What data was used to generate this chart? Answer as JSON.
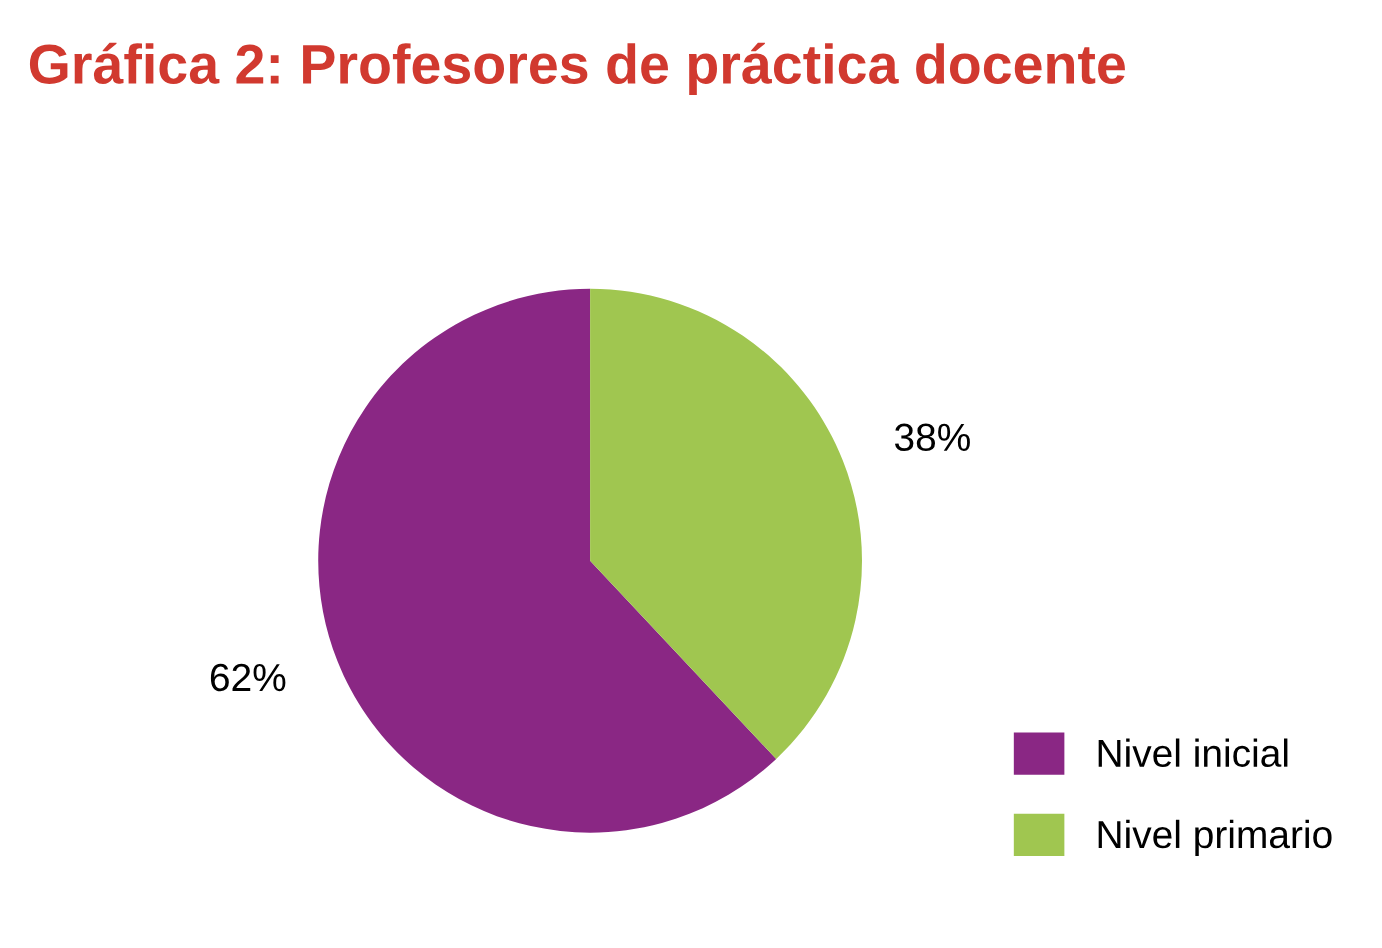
{
  "chart_data": {
    "type": "pie",
    "title": "Gráfica 2: Profesores de práctica docente",
    "categories": [
      "Nivel inicial",
      "Nivel primario"
    ],
    "values": [
      62,
      38
    ],
    "colors": [
      "#8a2784",
      "#a0c650"
    ],
    "value_labels": [
      "62%",
      "38%"
    ],
    "legend": "bottom right"
  }
}
